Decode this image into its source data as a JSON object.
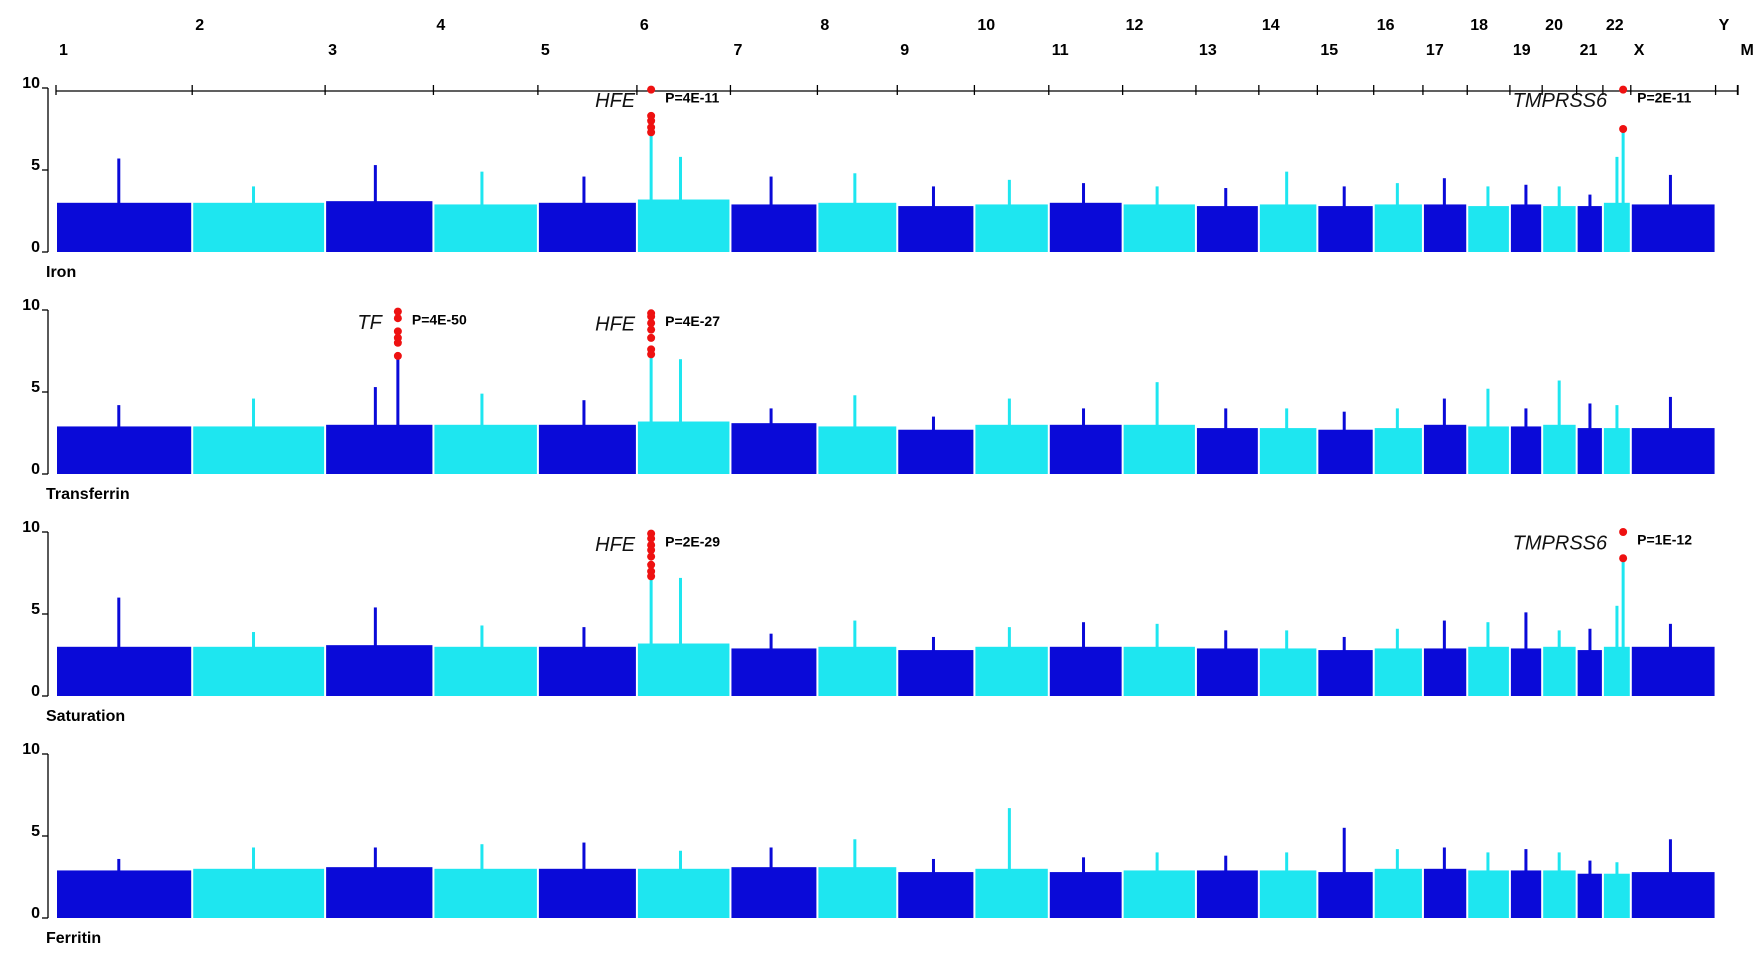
{
  "chart_data": {
    "type": "manhattan",
    "chromosomes": [
      "1",
      "2",
      "3",
      "4",
      "5",
      "6",
      "7",
      "8",
      "9",
      "10",
      "11",
      "12",
      "13",
      "14",
      "15",
      "16",
      "17",
      "18",
      "19",
      "20",
      "21",
      "22",
      "X",
      "Y",
      "M"
    ],
    "lengths": [
      249,
      243,
      198,
      191,
      181,
      171,
      159,
      146,
      141,
      136,
      135,
      134,
      115,
      107,
      103,
      90,
      81,
      78,
      59,
      63,
      48,
      51,
      155,
      40,
      1
    ],
    "ylim": [
      0,
      10
    ],
    "yticks": [
      0,
      5,
      10
    ],
    "colors": [
      "#0a0ad8",
      "#1ee6f0"
    ],
    "hit_color": "#ee1111",
    "panels": [
      {
        "label": "Iron",
        "bulk": [
          3.0,
          3.0,
          3.1,
          2.9,
          3.0,
          3.2,
          2.9,
          3.0,
          2.8,
          2.9,
          3.0,
          2.9,
          2.8,
          2.9,
          2.8,
          2.9,
          2.9,
          2.8,
          2.9,
          2.8,
          2.8,
          3.0,
          2.9,
          null,
          null
        ],
        "peaks": [
          5.7,
          4.0,
          5.3,
          4.9,
          4.6,
          5.8,
          4.6,
          4.8,
          4.0,
          4.4,
          4.2,
          4.0,
          3.9,
          4.9,
          4.0,
          4.2,
          4.5,
          4.0,
          4.1,
          4.0,
          3.5,
          5.8,
          4.7,
          null,
          null
        ],
        "hits": [
          {
            "gene": "HFE",
            "p_label": "P=4E-11",
            "chromosome": "6",
            "position": 26,
            "values": [
              9.9,
              8.3,
              8.0,
              7.6,
              7.3
            ]
          },
          {
            "gene": "TMPRSS6",
            "p_label": "P=2E-11",
            "chromosome": "22",
            "position": 37,
            "values": [
              9.9,
              7.5
            ]
          }
        ]
      },
      {
        "label": "Transferrin",
        "bulk": [
          2.9,
          2.9,
          3.0,
          3.0,
          3.0,
          3.2,
          3.1,
          2.9,
          2.7,
          3.0,
          3.0,
          3.0,
          2.8,
          2.8,
          2.7,
          2.8,
          3.0,
          2.9,
          2.9,
          3.0,
          2.8,
          2.8,
          2.8,
          null,
          null
        ],
        "peaks": [
          4.2,
          4.6,
          5.3,
          4.9,
          4.5,
          7.0,
          4.0,
          4.8,
          3.5,
          4.6,
          4.0,
          5.6,
          4.0,
          4.0,
          3.8,
          4.0,
          4.6,
          5.2,
          4.0,
          5.7,
          4.3,
          4.2,
          4.7,
          null,
          null
        ],
        "hits": [
          {
            "gene": "TF",
            "p_label": "P=4E-50",
            "chromosome": "3",
            "position": 133,
            "values": [
              9.9,
              9.5,
              8.7,
              8.3,
              8.0,
              7.2
            ]
          },
          {
            "gene": "HFE",
            "p_label": "P=4E-27",
            "chromosome": "6",
            "position": 26,
            "values": [
              9.8,
              9.6,
              9.2,
              8.8,
              8.3,
              7.6,
              7.3
            ]
          }
        ]
      },
      {
        "label": "Saturation",
        "bulk": [
          3.0,
          3.0,
          3.1,
          3.0,
          3.0,
          3.2,
          2.9,
          3.0,
          2.8,
          3.0,
          3.0,
          3.0,
          2.9,
          2.9,
          2.8,
          2.9,
          2.9,
          3.0,
          2.9,
          3.0,
          2.8,
          3.0,
          3.0,
          null,
          null
        ],
        "peaks": [
          6.0,
          3.9,
          5.4,
          4.3,
          4.2,
          7.2,
          3.8,
          4.6,
          3.6,
          4.2,
          4.5,
          4.4,
          4.0,
          4.0,
          3.6,
          4.1,
          4.6,
          4.5,
          5.1,
          4.0,
          4.1,
          5.5,
          4.4,
          null,
          null
        ],
        "hits": [
          {
            "gene": "HFE",
            "p_label": "P=2E-29",
            "chromosome": "6",
            "position": 26,
            "values": [
              9.9,
              9.6,
              9.2,
              8.9,
              8.5,
              8.0,
              7.6,
              7.3
            ]
          },
          {
            "gene": "TMPRSS6",
            "p_label": "P=1E-12",
            "chromosome": "22",
            "position": 37,
            "values": [
              10.0,
              8.4
            ]
          }
        ]
      },
      {
        "label": "Ferritin",
        "bulk": [
          2.9,
          3.0,
          3.1,
          3.0,
          3.0,
          3.0,
          3.1,
          3.1,
          2.8,
          3.0,
          2.8,
          2.9,
          2.9,
          2.9,
          2.8,
          3.0,
          3.0,
          2.9,
          2.9,
          2.9,
          2.7,
          2.7,
          2.8,
          null,
          null
        ],
        "peaks": [
          3.6,
          4.3,
          4.3,
          4.5,
          4.6,
          4.1,
          4.3,
          4.8,
          3.6,
          6.7,
          3.7,
          4.0,
          3.8,
          4.0,
          5.5,
          4.2,
          4.3,
          4.0,
          4.2,
          4.0,
          3.5,
          3.4,
          4.8,
          null,
          null
        ],
        "hits": []
      }
    ]
  }
}
